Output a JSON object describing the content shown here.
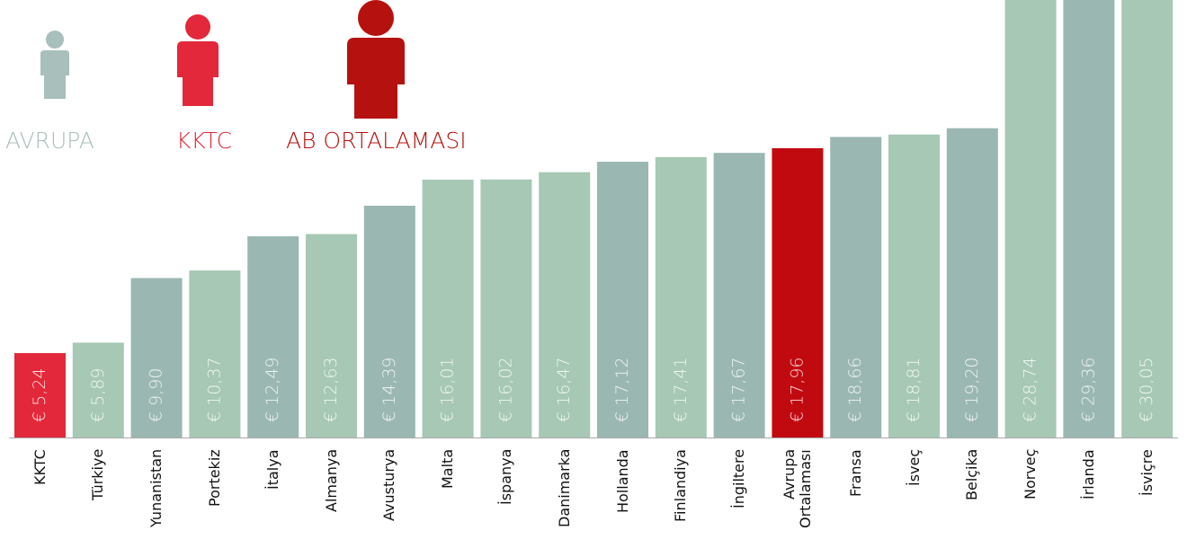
{
  "chart_data": {
    "type": "bar",
    "categories": [
      "KKTC",
      "Türkiye",
      "Yunanistan",
      "Portekiz",
      "İtalya",
      "Almanya",
      "Avusturya",
      "Malta",
      "İspanya",
      "Danimarka",
      "Hollanda",
      "Finlandiya",
      "İngiltere",
      "Avrupa Ortalaması",
      "Fransa",
      "İsveç",
      "Belçika",
      "Norveç",
      "İrlanda",
      "İsviçre"
    ],
    "values": [
      5.24,
      5.89,
      9.9,
      10.37,
      12.49,
      12.63,
      14.39,
      16.01,
      16.02,
      16.47,
      17.12,
      17.41,
      17.67,
      17.96,
      18.66,
      18.81,
      19.2,
      28.74,
      29.36,
      30.05
    ],
    "value_labels": [
      "€ 5,24",
      "€ 5,89",
      "€ 9,90",
      "€ 10,37",
      "€ 12,49",
      "€ 12,63",
      "€ 14,39",
      "€ 16,01",
      "€ 16,02",
      "€ 16,47",
      "€ 17,12",
      "€ 17,41",
      "€ 17,67",
      "€ 17,96",
      "€ 18,66",
      "€ 18,81",
      "€ 19,20",
      "€ 28,74",
      "€ 29,36",
      "€ 30,05"
    ],
    "colors": [
      "#e2283a",
      "#a6c8b4",
      "#9bb7b2",
      "#a6c8b4",
      "#9bb7b2",
      "#a6c8b4",
      "#9bb7b2",
      "#a6c8b4",
      "#a6c8b4",
      "#a6c8b4",
      "#9bb7b2",
      "#a6c8b4",
      "#9bb7b2",
      "#c10a10",
      "#9bb7b2",
      "#a6c8b4",
      "#9bb7b2",
      "#a6c8b4",
      "#9bb7b2",
      "#a6c8b4"
    ],
    "legend": [
      {
        "label": "AVRUPA",
        "color": "#a8bfbb"
      },
      {
        "label": "KKTC",
        "color": "#e2283a"
      },
      {
        "label": "AB ORTALAMASI",
        "color": "#b5120f"
      }
    ]
  }
}
